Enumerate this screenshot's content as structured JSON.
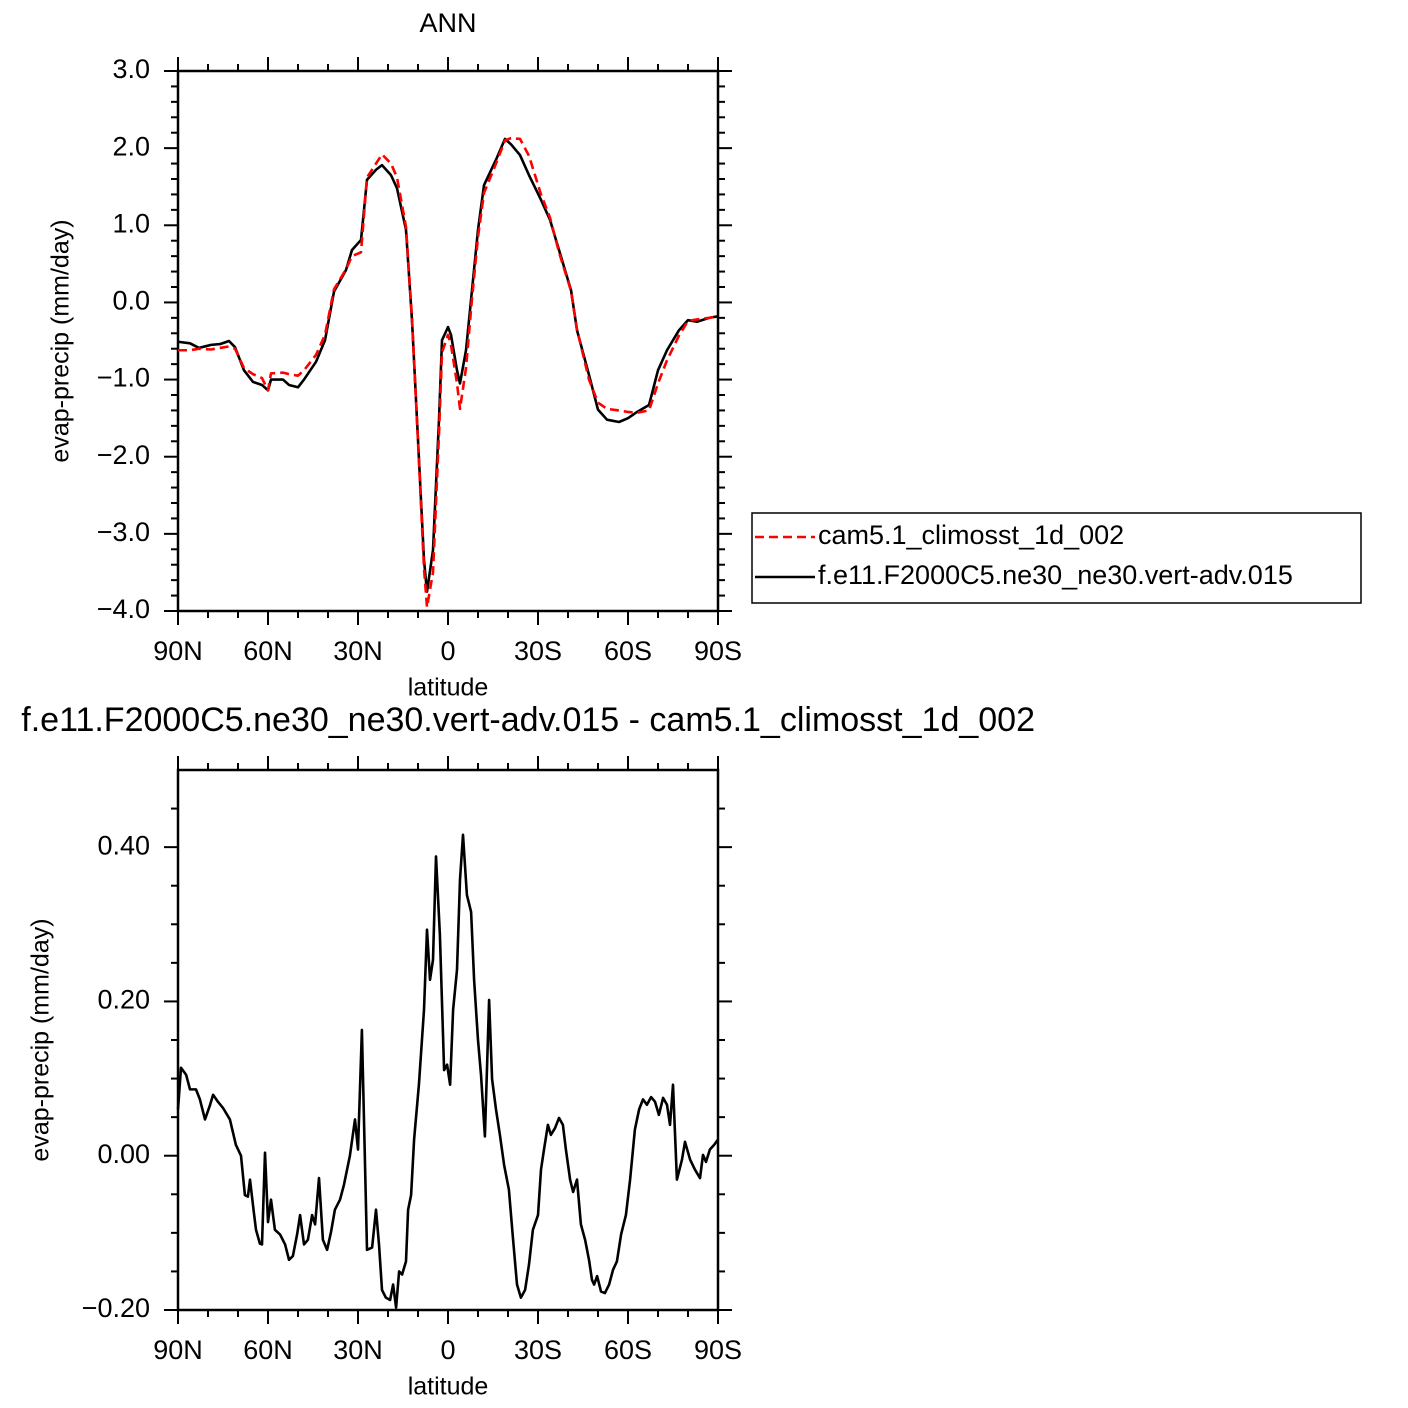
{
  "chart_data": [
    {
      "type": "line",
      "title": "ANN",
      "x_label": "latitude",
      "y_label": "evap-precip (mm/day)",
      "x": [
        90,
        86,
        83,
        79,
        76,
        73,
        71,
        68,
        65,
        62,
        60,
        59,
        55,
        53,
        50,
        48,
        44,
        41,
        38,
        34,
        32,
        29,
        27,
        24,
        22,
        19,
        17,
        14,
        12,
        10,
        8,
        7,
        5,
        3,
        2,
        0,
        -1,
        -3,
        -4,
        -6,
        -8,
        -10,
        -12,
        -16,
        -19,
        -21,
        -24,
        -27,
        -31,
        -34,
        -37,
        -41,
        -43,
        -47,
        -50,
        -53,
        -57,
        -60,
        -63,
        -67,
        -70,
        -73,
        -77,
        -80,
        -83,
        -87,
        -90
      ],
      "series": [
        {
          "name": "cam5.1_climosst_1d_002",
          "color": "#ff0000",
          "line_style": "dashed",
          "values": [
            -0.62,
            -0.62,
            -0.6,
            -0.61,
            -0.59,
            -0.57,
            -0.6,
            -0.85,
            -0.93,
            -0.98,
            -1.14,
            -0.92,
            -0.91,
            -0.93,
            -0.95,
            -0.88,
            -0.68,
            -0.42,
            0.17,
            0.43,
            0.6,
            0.65,
            1.62,
            1.8,
            1.92,
            1.8,
            1.62,
            0.98,
            -0.2,
            -1.8,
            -3.45,
            -3.95,
            -3.5,
            -1.7,
            -0.65,
            -0.42,
            -0.55,
            -1.05,
            -1.38,
            -0.85,
            0.05,
            0.85,
            1.42,
            1.8,
            2.1,
            2.13,
            2.12,
            1.9,
            1.4,
            1.1,
            0.65,
            0.15,
            -0.35,
            -1.0,
            -1.3,
            -1.38,
            -1.4,
            -1.42,
            -1.43,
            -1.4,
            -1.05,
            -0.75,
            -0.43,
            -0.24,
            -0.22,
            -0.2,
            -0.18
          ]
        },
        {
          "name": "f.e11.F2000C5.ne30_ne30.vert-adv.015",
          "color": "#000000",
          "line_style": "solid",
          "values": [
            -0.51,
            -0.53,
            -0.59,
            -0.55,
            -0.54,
            -0.5,
            -0.58,
            -0.88,
            -1.03,
            -1.07,
            -1.14,
            -1.0,
            -1.0,
            -1.07,
            -1.1,
            -1.0,
            -0.77,
            -0.49,
            0.14,
            0.42,
            0.68,
            0.81,
            1.59,
            1.72,
            1.78,
            1.65,
            1.48,
            0.94,
            -0.23,
            -1.78,
            -3.34,
            -3.75,
            -3.21,
            -1.52,
            -0.49,
            -0.32,
            -0.42,
            -0.88,
            -1.05,
            -0.62,
            0.16,
            0.94,
            1.52,
            1.85,
            2.12,
            2.05,
            1.91,
            1.65,
            1.33,
            1.07,
            0.68,
            0.16,
            -0.36,
            -0.94,
            -1.39,
            -1.52,
            -1.55,
            -1.5,
            -1.42,
            -1.33,
            -0.88,
            -0.62,
            -0.36,
            -0.23,
            -0.25,
            -0.2,
            -0.18
          ]
        }
      ],
      "xlim": [
        90,
        -90
      ],
      "xticks": [
        {
          "value": 90,
          "label": "90N"
        },
        {
          "value": 60,
          "label": "60N"
        },
        {
          "value": 30,
          "label": "30N"
        },
        0,
        {
          "value": -30,
          "label": "30S"
        },
        {
          "value": -60,
          "label": "60S"
        },
        {
          "value": -90,
          "label": "90S"
        }
      ],
      "xminorticks": [
        80,
        70,
        50,
        40,
        20,
        10,
        -10,
        -20,
        -40,
        -50,
        -70,
        -80
      ],
      "ylim": [
        -4,
        3
      ],
      "yticks": [
        {
          "value": 3,
          "label": "3.0"
        },
        {
          "value": 2,
          "label": "2.0"
        },
        {
          "value": 1,
          "label": "1.0"
        },
        {
          "value": 0,
          "label": "0.0"
        },
        {
          "value": -1,
          "label": "−1.0"
        },
        {
          "value": -2,
          "label": "−2.0"
        },
        {
          "value": -3,
          "label": "−3.0"
        },
        {
          "value": -4,
          "label": "−4.0"
        }
      ],
      "yminorticks": [
        2.8,
        2.6,
        2.4,
        2.2,
        1.8,
        1.6,
        1.4,
        1.2,
        0.8,
        0.6,
        0.4,
        0.2,
        -0.2,
        -0.4,
        -0.6,
        -0.8,
        -1.2,
        -1.4,
        -1.6,
        -1.8,
        -2.2,
        -2.4,
        -2.6,
        -2.8,
        -3.2,
        -3.4,
        -3.6,
        -3.8
      ],
      "legend": "outside-right"
    },
    {
      "type": "line",
      "title": "f.e11.F2000C5.ne30_ne30.vert-adv.015 - cam5.1_climosst_1d_002",
      "x_label": "latitude",
      "y_label": "evap-precip (mm/day)",
      "x": [
        90,
        89,
        87.3,
        86,
        84,
        82.7,
        81,
        79.3,
        78.3,
        76.7,
        75,
        72.7,
        70.7,
        69,
        67.7,
        66.7,
        66,
        64.7,
        64,
        62.7,
        62,
        61,
        60,
        59,
        57.7,
        56,
        54.3,
        53,
        51.7,
        50.3,
        49.3,
        48,
        46.7,
        45.3,
        44.3,
        43,
        41.7,
        40.3,
        39,
        37.7,
        36,
        34.7,
        32.7,
        31,
        30,
        28.7,
        27,
        25.3,
        24,
        23,
        22,
        20.7,
        19.3,
        18.3,
        17.3,
        16.3,
        15.3,
        14,
        13.3,
        12.3,
        11.3,
        9.7,
        8,
        7,
        6,
        5,
        4,
        2.7,
        1.3,
        0.3,
        -0.7,
        -1.7,
        -3,
        -4,
        -5,
        -6.3,
        -7.7,
        -8.7,
        -10,
        -11,
        -12.3,
        -13.7,
        -14.7,
        -16,
        -17.3,
        -18.7,
        -20.3,
        -21.7,
        -23,
        -24.3,
        -25.7,
        -27,
        -28.3,
        -30,
        -31,
        -32,
        -33.3,
        -34.3,
        -35.7,
        -37,
        -38.3,
        -39.3,
        -40.7,
        -41.7,
        -43,
        -44.3,
        -45.7,
        -47,
        -48,
        -48.7,
        -49.7,
        -51,
        -52.3,
        -53.7,
        -55,
        -56.3,
        -57.7,
        -59.3,
        -60.7,
        -62.3,
        -63.7,
        -65,
        -66.3,
        -67.7,
        -69,
        -70.3,
        -71.7,
        -73,
        -74,
        -75,
        -76.3,
        -78,
        -79,
        -80.7,
        -82.3,
        -84,
        -85,
        -86,
        -87.3,
        -88.7,
        -90
      ],
      "values": [
        0.06,
        0.114,
        0.105,
        0.086,
        0.086,
        0.073,
        0.047,
        0.066,
        0.079,
        0.07,
        0.062,
        0.047,
        0.014,
        0,
        -0.051,
        -0.053,
        -0.031,
        -0.074,
        -0.096,
        -0.114,
        -0.115,
        0.004,
        -0.086,
        -0.057,
        -0.096,
        -0.102,
        -0.115,
        -0.135,
        -0.13,
        -0.102,
        -0.077,
        -0.115,
        -0.109,
        -0.077,
        -0.089,
        -0.029,
        -0.109,
        -0.122,
        -0.099,
        -0.07,
        -0.057,
        -0.038,
        0,
        0.047,
        0.008,
        0.163,
        -0.122,
        -0.119,
        -0.07,
        -0.115,
        -0.174,
        -0.184,
        -0.187,
        -0.167,
        -0.197,
        -0.15,
        -0.154,
        -0.137,
        -0.07,
        -0.051,
        0.021,
        0.092,
        0.189,
        0.293,
        0.228,
        0.254,
        0.388,
        0.286,
        0.111,
        0.118,
        0.092,
        0.189,
        0.241,
        0.358,
        0.416,
        0.338,
        0.316,
        0.228,
        0.15,
        0.105,
        0.025,
        0.202,
        0.099,
        0.06,
        0.027,
        -0.012,
        -0.044,
        -0.109,
        -0.167,
        -0.184,
        -0.174,
        -0.141,
        -0.096,
        -0.077,
        -0.018,
        0.008,
        0.04,
        0.027,
        0.036,
        0.049,
        0.04,
        0.008,
        -0.031,
        -0.047,
        -0.031,
        -0.089,
        -0.109,
        -0.135,
        -0.161,
        -0.167,
        -0.156,
        -0.176,
        -0.178,
        -0.167,
        -0.148,
        -0.137,
        -0.102,
        -0.077,
        -0.031,
        0.034,
        0.06,
        0.073,
        0.066,
        0.076,
        0.07,
        0.053,
        0.075,
        0.066,
        0.04,
        0.092,
        -0.031,
        -0.005,
        0.018,
        -0.005,
        -0.018,
        -0.029,
        0.001,
        -0.008,
        0.008,
        0.014,
        0.021
      ],
      "color": "#000000",
      "line_style": "solid",
      "xlim": [
        90,
        -90
      ],
      "xticks": [
        {
          "value": 90,
          "label": "90N"
        },
        {
          "value": 60,
          "label": "60N"
        },
        {
          "value": 30,
          "label": "30N"
        },
        0,
        {
          "value": -30,
          "label": "30S"
        },
        {
          "value": -60,
          "label": "60S"
        },
        {
          "value": -90,
          "label": "90S"
        }
      ],
      "xminorticks": [
        80,
        70,
        50,
        40,
        20,
        10,
        -10,
        -20,
        -40,
        -50,
        -70,
        -80
      ],
      "ylim": [
        -0.2,
        0.5
      ],
      "yticks": [
        {
          "value": -0.2,
          "label": "−0.20"
        },
        {
          "value": 0,
          "label": "0.00"
        },
        {
          "value": 0.2,
          "label": "0.20"
        },
        {
          "value": 0.4,
          "label": "0.40"
        }
      ],
      "yminorticks": [
        -0.15,
        -0.1,
        -0.05,
        0.05,
        0.1,
        0.15,
        0.25,
        0.3,
        0.35,
        0.45
      ]
    }
  ]
}
